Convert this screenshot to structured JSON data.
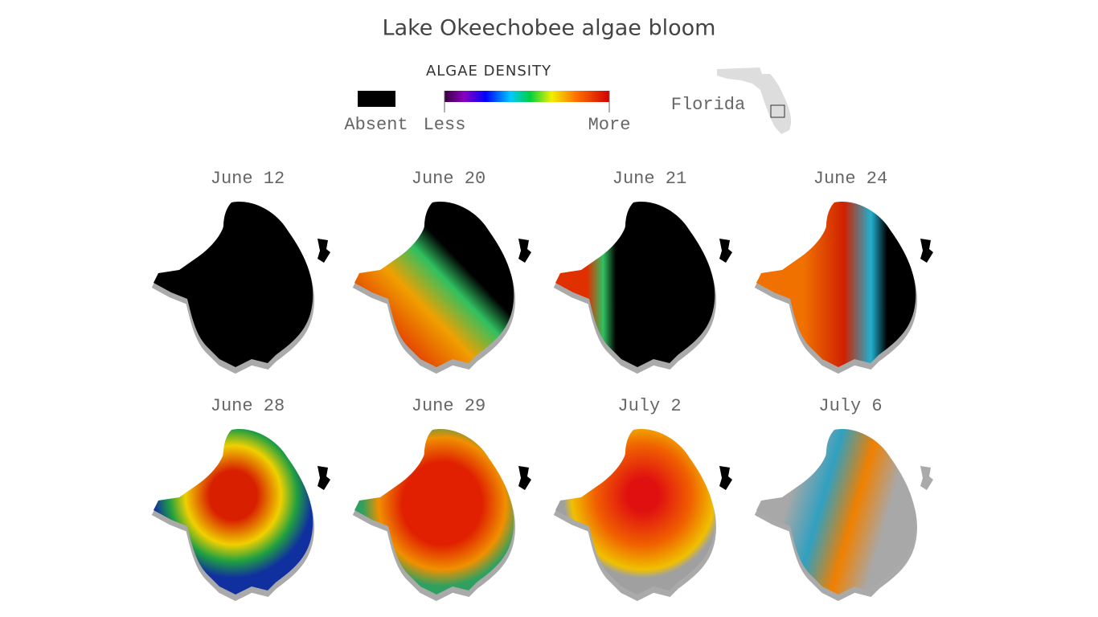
{
  "title": "Lake Okeechobee algae bloom",
  "legend": {
    "title": "ALGAE DENSITY",
    "absent": "Absent",
    "less": "Less",
    "more": "More"
  },
  "locator": {
    "label": "Florida"
  },
  "panels": [
    {
      "date": "June 12"
    },
    {
      "date": "June 20"
    },
    {
      "date": "June 21"
    },
    {
      "date": "June 24"
    },
    {
      "date": "June 28"
    },
    {
      "date": "June 29"
    },
    {
      "date": "July 2"
    },
    {
      "date": "July 6"
    }
  ]
}
